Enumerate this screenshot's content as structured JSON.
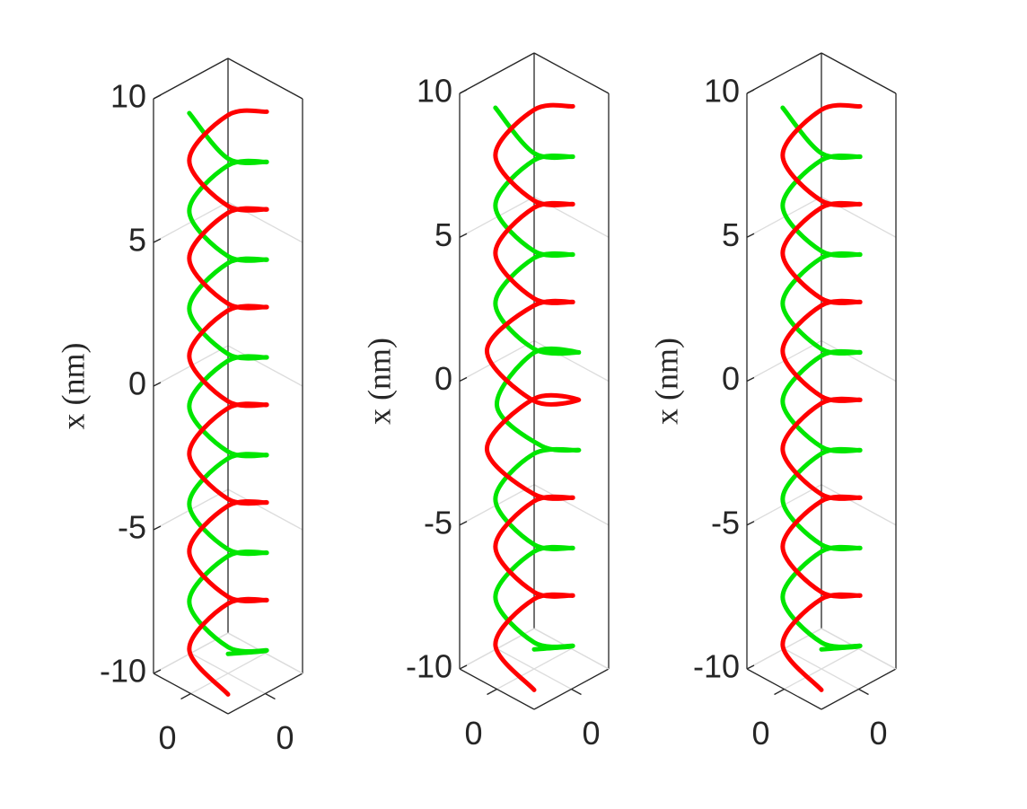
{
  "chart_data": [
    {
      "type": "line3d",
      "xlabel": "x (nm)",
      "xlim": [
        -10,
        10
      ],
      "xticks": [
        -10,
        -5,
        0,
        5,
        10
      ],
      "ylim": [
        -1.5,
        1.5
      ],
      "yticks": [
        0
      ],
      "zlim": [
        -1.5,
        1.5
      ],
      "zticks": [
        0
      ],
      "grid": true,
      "series": [
        {
          "color": "#00e600",
          "x": [
            -10.05,
            -9.2,
            -8.35,
            -7.5,
            -6.65,
            -5.8,
            -4.95,
            -4.1,
            -3.25,
            -2.4,
            -1.55,
            -0.7,
            0.15,
            1,
            1.85,
            2.7,
            3.55,
            4.4,
            5.25,
            6.1,
            6.95,
            7.8,
            8.65,
            9.5
          ],
          "y": [
            0.78,
            0.78,
            -0.78,
            -0.78,
            0.78,
            0.78,
            -0.78,
            -0.78,
            0.78,
            0.78,
            -0.78,
            -0.78,
            0.78,
            0.78,
            -0.78,
            -0.78,
            0.78,
            0.78,
            -0.78,
            -0.78,
            0.78,
            0.78,
            -0.78,
            -0.78
          ],
          "z": [
            0.78,
            -0.78,
            -0.78,
            0.78,
            0.78,
            -0.78,
            -0.78,
            0.78,
            0.78,
            -0.78,
            -0.78,
            0.78,
            0.78,
            -0.78,
            -0.78,
            0.78,
            0.78,
            -0.78,
            -0.78,
            0.78,
            0.78,
            -0.78,
            -0.78,
            0.78
          ]
        },
        {
          "color": "#ff0000",
          "x": [
            -10,
            -9.15,
            -8.3,
            -7.45,
            -6.6,
            -5.75,
            -4.9,
            -4.05,
            -3.2,
            -2.35,
            -1.5,
            -0.65,
            0.2,
            1.05,
            1.9,
            2.75,
            3.6,
            4.45,
            5.3,
            6.15,
            7,
            7.85,
            8.7,
            9.55
          ],
          "y": [
            -0.78,
            -0.78,
            0.78,
            0.78,
            -0.78,
            -0.78,
            0.78,
            0.78,
            -0.78,
            -0.78,
            0.78,
            0.78,
            -0.78,
            -0.78,
            0.78,
            0.78,
            -0.78,
            -0.78,
            0.78,
            0.78,
            -0.78,
            -0.78,
            0.78,
            0.78
          ],
          "z": [
            -0.78,
            0.78,
            0.78,
            -0.78,
            -0.78,
            0.78,
            0.78,
            -0.78,
            -0.78,
            0.78,
            0.78,
            -0.78,
            -0.78,
            0.78,
            0.78,
            -0.78,
            -0.78,
            0.78,
            0.78,
            -0.78,
            -0.78,
            0.78,
            0.78,
            -0.78
          ]
        }
      ]
    },
    {
      "type": "line3d",
      "xlabel": "x (nm)",
      "xlim": [
        -10,
        10
      ],
      "xticks": [
        -10,
        -5,
        0,
        5,
        10
      ],
      "ylim": [
        -1.5,
        1.5
      ],
      "yticks": [
        0
      ],
      "zlim": [
        -1.5,
        1.5
      ],
      "zticks": [
        0
      ],
      "grid": true,
      "series": [
        {
          "color": "#00e600",
          "x": [
            -10.05,
            -9.2,
            -8.35,
            -7.5,
            -6.65,
            -5.8,
            -4.95,
            -4.1,
            -3.25,
            -2.4,
            -1.55,
            -0.7,
            0.15,
            1,
            1.85,
            2.7,
            3.55,
            4.4,
            5.25,
            6.1,
            6.95,
            7.8,
            8.65,
            9.5
          ],
          "y": [
            0.78,
            0.78,
            -0.78,
            -0.78,
            0.78,
            0.78,
            -0.78,
            -0.78,
            0.78,
            0.9,
            -0.6,
            -0.9,
            0.9,
            0.9,
            -0.78,
            -0.78,
            0.78,
            0.78,
            -0.78,
            -0.78,
            0.78,
            0.78,
            -0.78,
            -0.78
          ],
          "z": [
            0.78,
            -0.78,
            -0.78,
            0.78,
            0.78,
            -0.78,
            -0.78,
            0.78,
            0.78,
            -0.9,
            -0.9,
            0.6,
            0.9,
            -0.9,
            -0.78,
            0.78,
            0.78,
            -0.78,
            -0.78,
            0.78,
            0.78,
            -0.78,
            -0.78,
            0.78
          ]
        },
        {
          "color": "#ff0000",
          "x": [
            -10,
            -9.15,
            -8.3,
            -7.45,
            -6.6,
            -5.75,
            -4.9,
            -4.05,
            -3.2,
            -2.35,
            -1.5,
            -0.65,
            0.2,
            1.05,
            1.9,
            2.75,
            3.6,
            4.45,
            5.3,
            6.15,
            7,
            7.85,
            8.7,
            9.55
          ],
          "y": [
            -0.78,
            -0.78,
            0.78,
            0.78,
            -0.78,
            -0.78,
            0.78,
            0.78,
            -0.78,
            -0.95,
            0.95,
            0.9,
            -0.95,
            -0.95,
            0.78,
            0.78,
            -0.78,
            -0.78,
            0.78,
            0.78,
            -0.78,
            -0.78,
            0.78,
            0.78
          ],
          "z": [
            -0.78,
            0.78,
            0.78,
            -0.78,
            -0.78,
            0.78,
            0.78,
            -0.78,
            -0.78,
            0.95,
            0.95,
            -0.9,
            -0.95,
            0.95,
            0.78,
            -0.78,
            -0.78,
            0.78,
            0.78,
            -0.78,
            -0.78,
            0.78,
            0.78,
            -0.78
          ]
        }
      ]
    },
    {
      "type": "line3d",
      "xlabel": "x (nm)",
      "xlim": [
        -10,
        10
      ],
      "xticks": [
        -10,
        -5,
        0,
        5,
        10
      ],
      "ylim": [
        -1.5,
        1.5
      ],
      "yticks": [
        0
      ],
      "zlim": [
        -1.5,
        1.5
      ],
      "zticks": [
        0
      ],
      "grid": true,
      "series": [
        {
          "color": "#00e600",
          "x": [
            -10.05,
            -9.2,
            -8.35,
            -7.5,
            -6.65,
            -5.8,
            -4.95,
            -4.1,
            -3.25,
            -2.4,
            -1.55,
            -0.7,
            0.15,
            1,
            1.85,
            2.7,
            3.55,
            4.4,
            5.25,
            6.1,
            6.95,
            7.8,
            8.65,
            9.5
          ],
          "y": [
            0.78,
            0.78,
            -0.78,
            -0.78,
            0.78,
            0.78,
            -0.78,
            -0.78,
            0.78,
            0.78,
            -0.78,
            -0.78,
            0.78,
            0.78,
            -0.78,
            -0.78,
            0.78,
            0.78,
            -0.78,
            -0.78,
            0.78,
            0.78,
            -0.78,
            -0.78
          ],
          "z": [
            0.78,
            -0.78,
            -0.78,
            0.78,
            0.78,
            -0.78,
            -0.78,
            0.78,
            0.78,
            -0.78,
            -0.78,
            0.78,
            0.78,
            -0.78,
            -0.78,
            0.78,
            0.78,
            -0.78,
            -0.78,
            0.78,
            0.78,
            -0.78,
            -0.78,
            0.78
          ]
        },
        {
          "color": "#ff0000",
          "x": [
            -10,
            -9.15,
            -8.3,
            -7.45,
            -6.6,
            -5.75,
            -4.9,
            -4.05,
            -3.2,
            -2.35,
            -1.5,
            -0.65,
            0.2,
            1.05,
            1.9,
            2.75,
            3.6,
            4.45,
            5.3,
            6.15,
            7,
            7.85,
            8.7,
            9.55
          ],
          "y": [
            -0.78,
            -0.78,
            0.78,
            0.78,
            -0.78,
            -0.78,
            0.78,
            0.78,
            -0.78,
            -0.78,
            0.78,
            0.78,
            -0.78,
            -0.78,
            0.78,
            0.78,
            -0.78,
            -0.78,
            0.78,
            0.78,
            -0.78,
            -0.78,
            0.78,
            0.78
          ],
          "z": [
            -0.78,
            0.78,
            0.78,
            -0.78,
            -0.78,
            0.78,
            0.78,
            -0.78,
            -0.78,
            0.78,
            0.78,
            -0.78,
            -0.78,
            0.78,
            0.78,
            -0.78,
            -0.78,
            0.78,
            0.78,
            -0.78,
            -0.78,
            0.78,
            0.78,
            -0.78
          ]
        }
      ]
    }
  ]
}
